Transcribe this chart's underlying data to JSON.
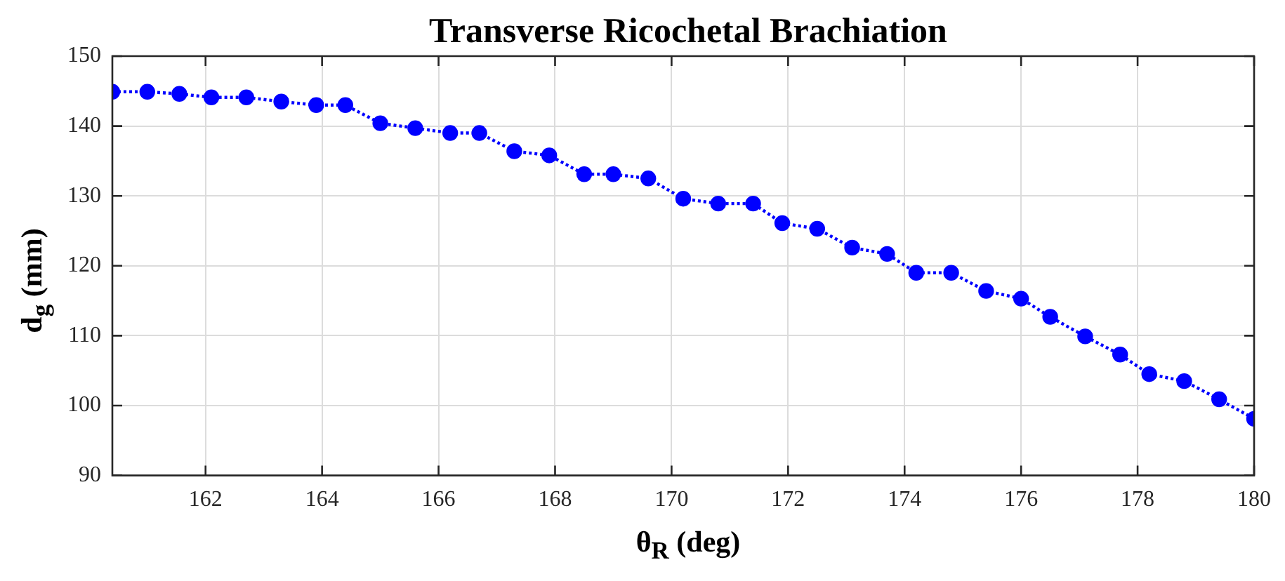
{
  "chart_data": {
    "type": "line",
    "title": "Transverse Ricochetal Brachiation",
    "xlabel": "θ$_{R}$ (deg)",
    "ylabel": "d$_{g}$ (mm)",
    "x": [
      160.4,
      161.0,
      161.55,
      162.1,
      162.7,
      163.3,
      163.9,
      164.4,
      165.0,
      165.6,
      166.2,
      166.7,
      167.3,
      167.9,
      168.5,
      169.0,
      169.6,
      170.2,
      170.8,
      171.4,
      171.9,
      172.5,
      173.1,
      173.7,
      174.2,
      174.8,
      175.4,
      176.0,
      176.5,
      177.1,
      177.7,
      178.2,
      178.8,
      179.4,
      180.0
    ],
    "series": [
      {
        "color": "#0000ff",
        "values": [
          144.9,
          144.9,
          144.6,
          144.1,
          144.1,
          143.5,
          143.0,
          143.0,
          140.4,
          139.7,
          139.0,
          139.0,
          136.4,
          135.8,
          133.1,
          133.1,
          132.5,
          129.6,
          128.9,
          128.9,
          126.1,
          125.3,
          122.6,
          121.7,
          119.0,
          119.0,
          116.4,
          115.3,
          112.7,
          109.9,
          107.3,
          104.5,
          103.5,
          100.9,
          98.1
        ]
      }
    ],
    "xlim": [
      160.4,
      180
    ],
    "xticks": [
      162,
      164,
      166,
      168,
      170,
      172,
      174,
      176,
      178,
      180
    ],
    "ylim": [
      90,
      150
    ],
    "yticks": [
      90,
      100,
      110,
      120,
      130,
      140,
      150
    ],
    "grid": true,
    "legend": false,
    "marker": "circle",
    "line_style": "dotted"
  }
}
